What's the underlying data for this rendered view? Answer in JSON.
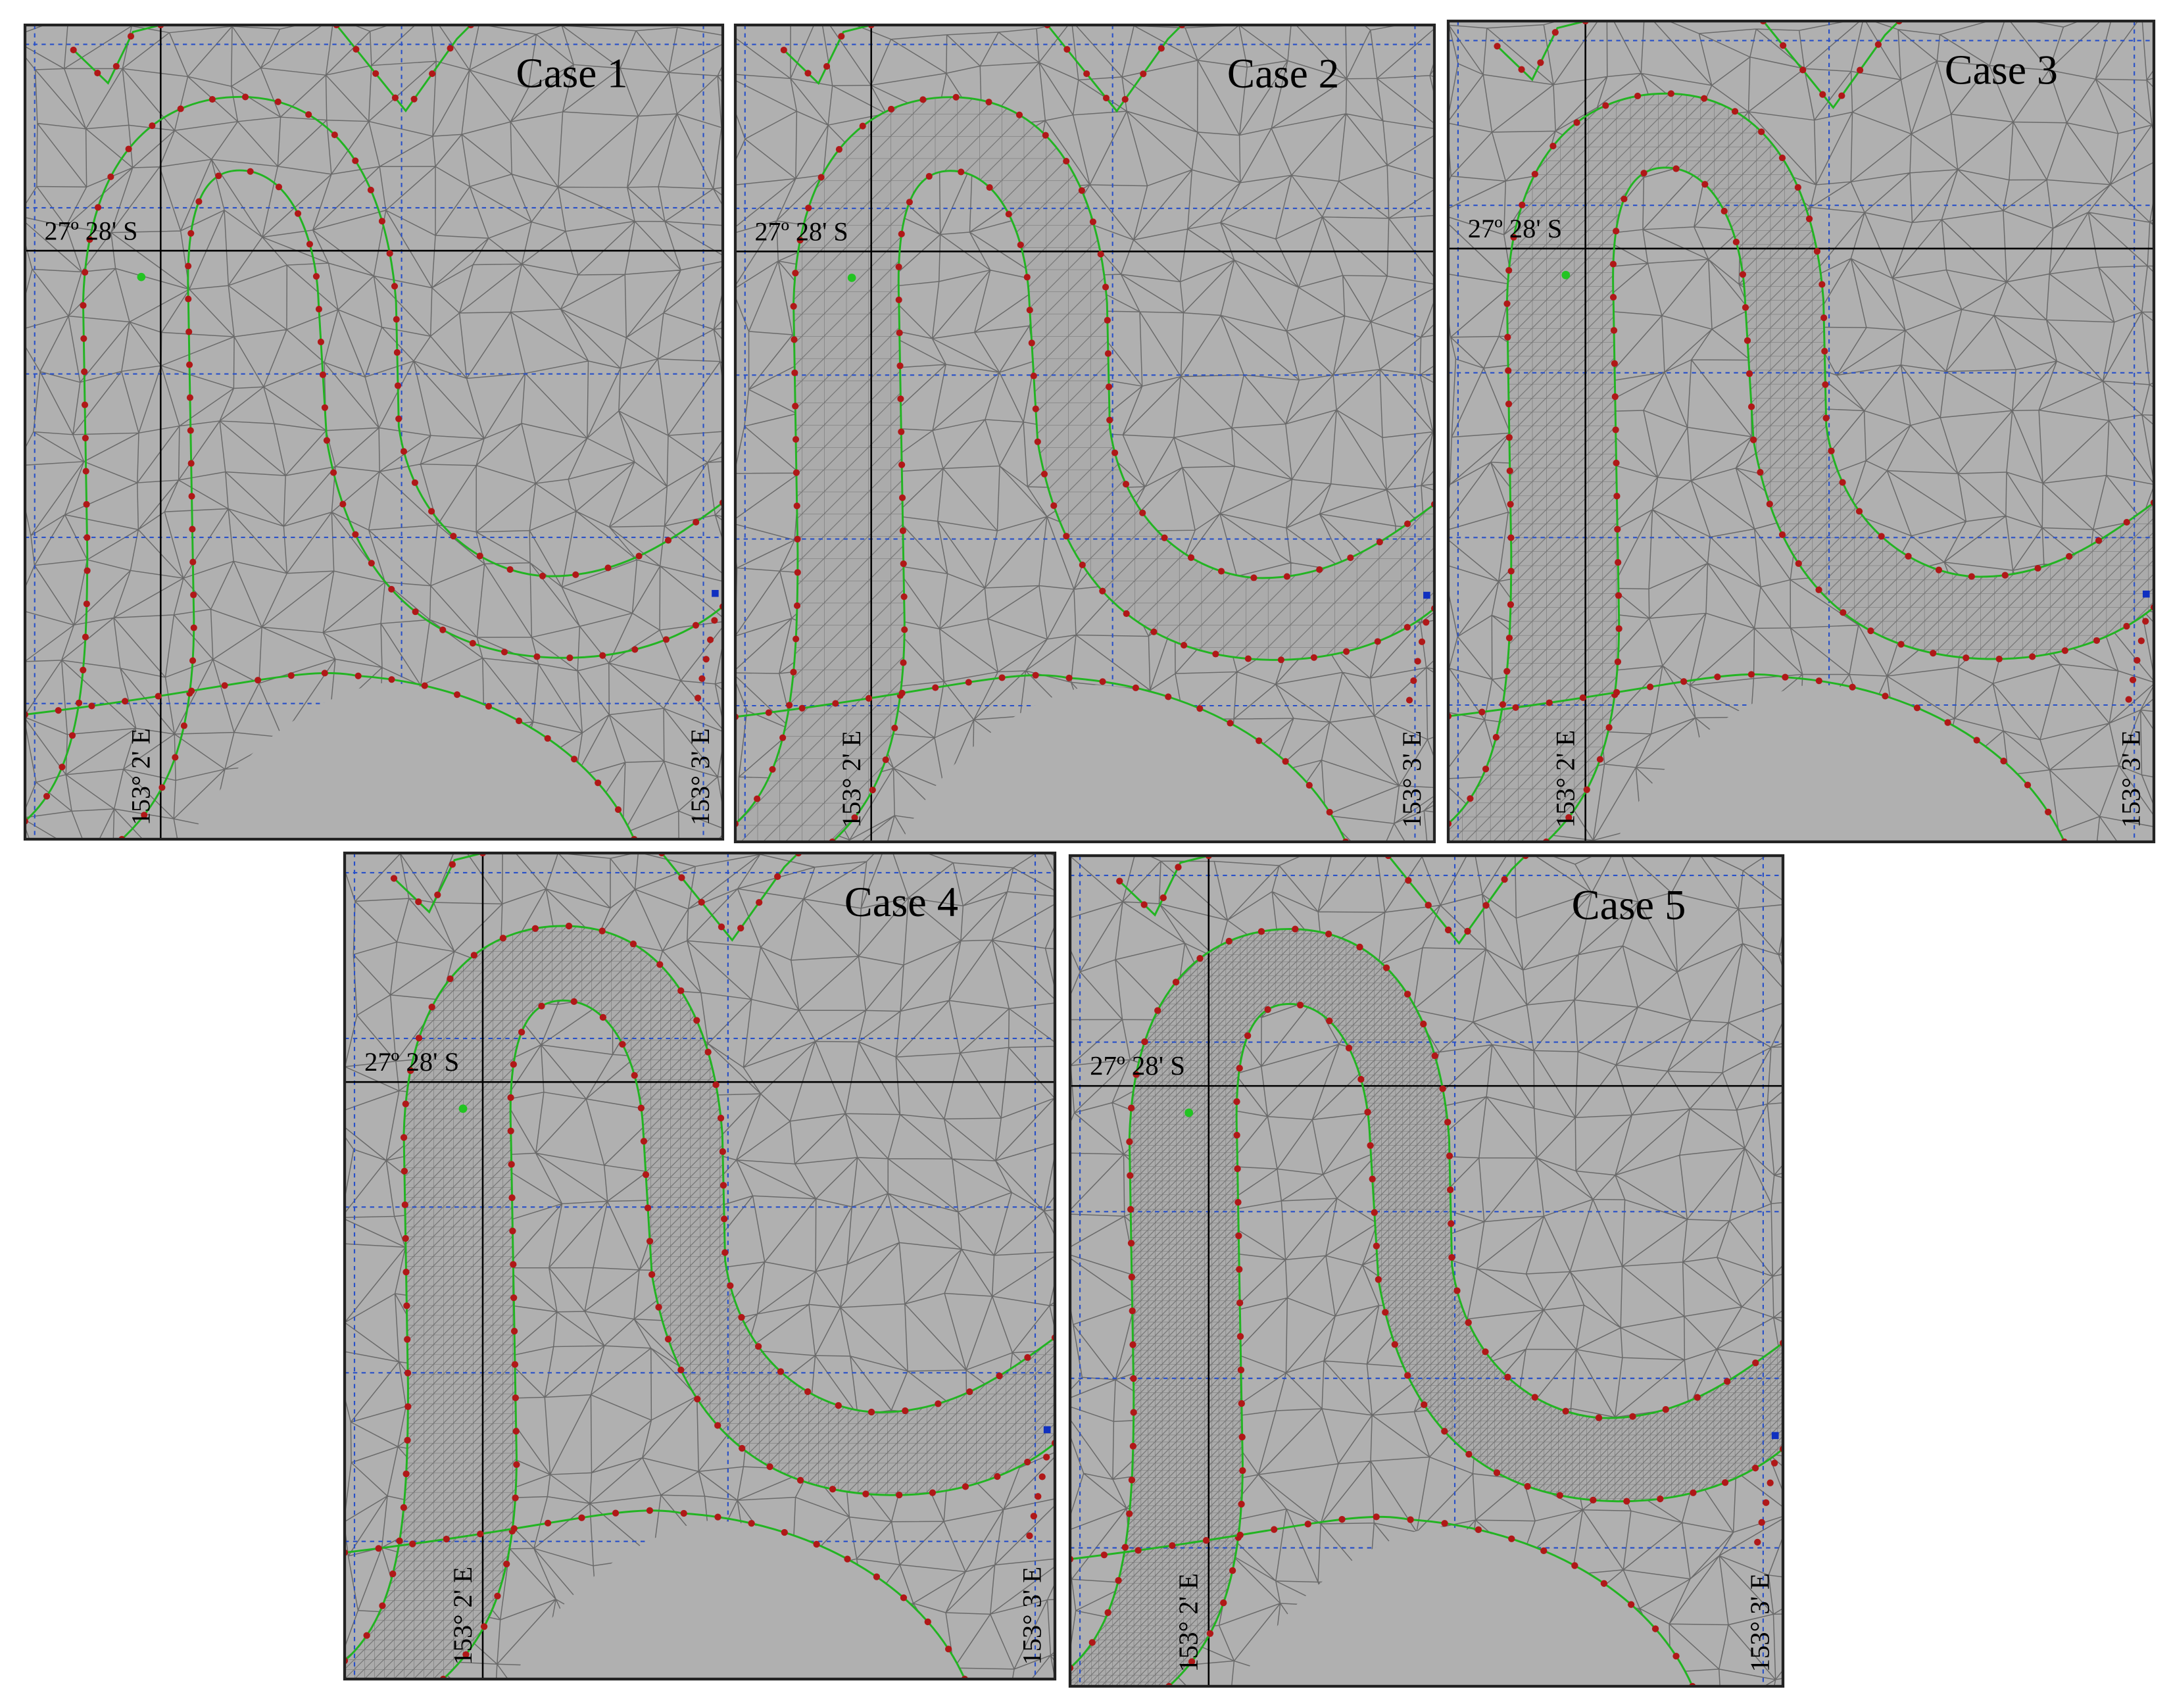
{
  "panels": [
    {
      "title": "Case 1",
      "lat_label": "27º 28' S",
      "lon_labels": [
        "153° 2' E",
        "153° 3' E"
      ]
    },
    {
      "title": "Case 2",
      "lat_label": "27º 28' S",
      "lon_labels": [
        "153° 2' E",
        "153° 3' E"
      ]
    },
    {
      "title": "Case 3",
      "lat_label": "27º 28' S",
      "lon_labels": [
        "153° 2' E",
        "153° 3' E"
      ]
    },
    {
      "title": "Case 4",
      "lat_label": "27º 28' S",
      "lon_labels": [
        "153° 2' E",
        "153° 3' E"
      ]
    },
    {
      "title": "Case 5",
      "lat_label": "27º 28' S",
      "lon_labels": [
        "153° 2' E",
        "153° 3' E"
      ]
    }
  ]
}
